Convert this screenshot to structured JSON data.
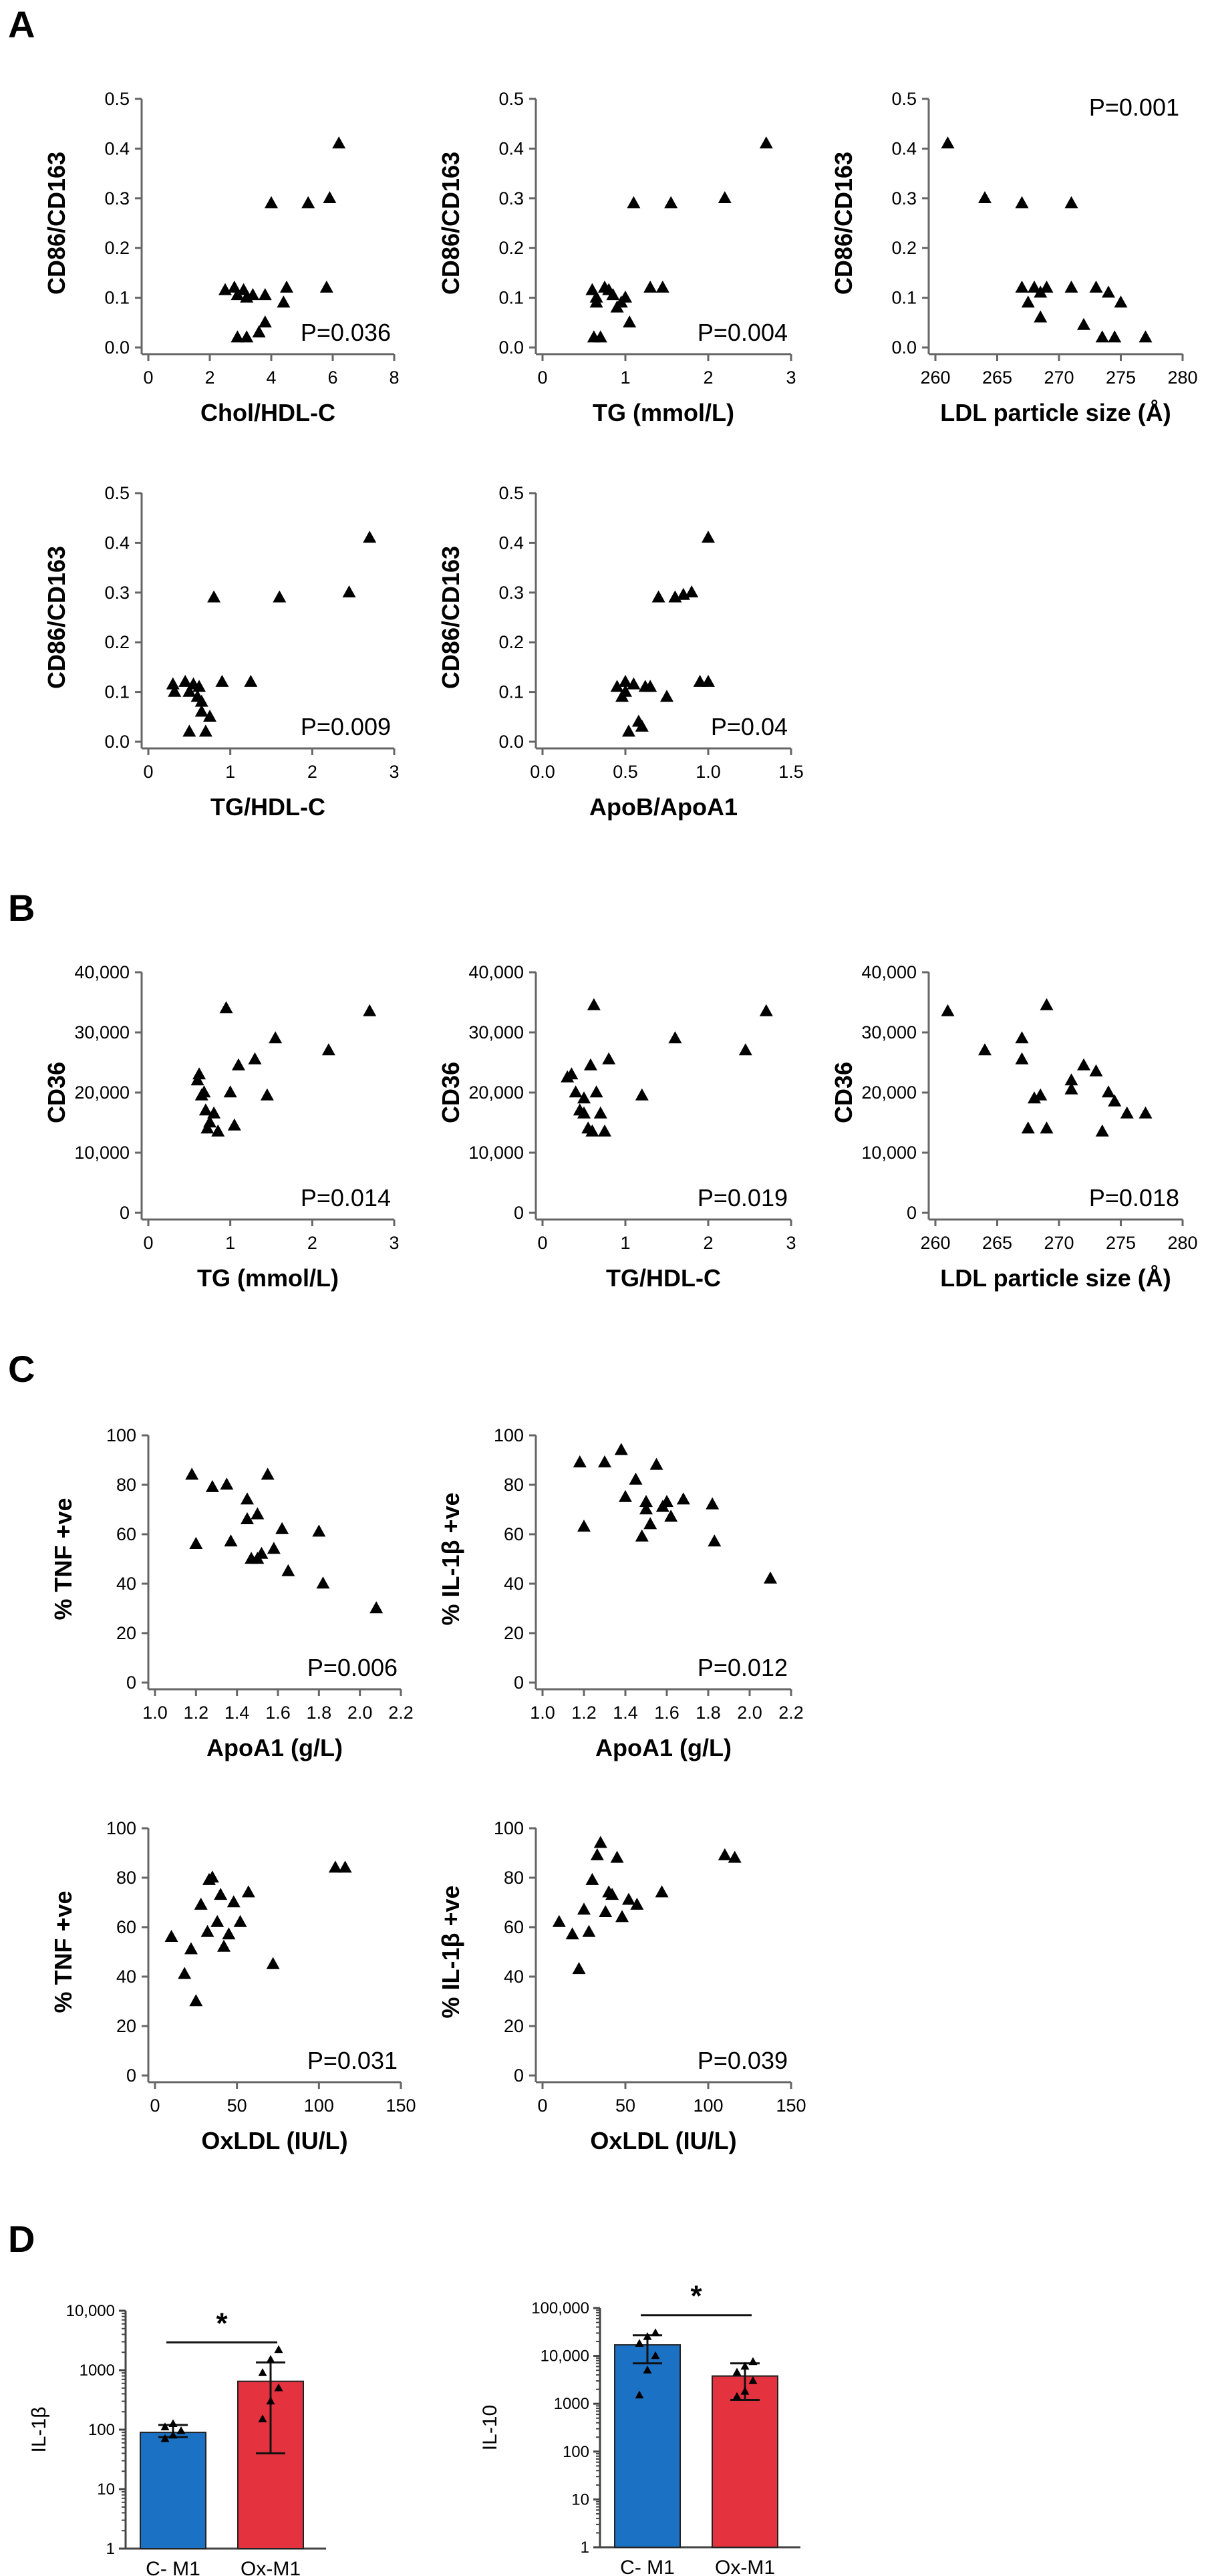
{
  "panels": {
    "A": "A",
    "B": "B",
    "C": "C",
    "D": "D"
  },
  "chart_data": [
    {
      "id": "A1",
      "panel": "A",
      "type": "scatter",
      "xlabel": "Chol/HDL-C",
      "ylabel": "CD86/CD163",
      "pvalue": "P=0.036",
      "pvalue_pos": "bottom-right",
      "xlim": [
        0,
        8
      ],
      "xticks": [
        0,
        2,
        4,
        6,
        8
      ],
      "xtick_labels": [
        "0",
        "2",
        "4",
        "6",
        "8"
      ],
      "ylim": [
        0,
        0.5
      ],
      "yticks": [
        0,
        0.1,
        0.2,
        0.3,
        0.4,
        0.5
      ],
      "ytick_labels": [
        "0.0",
        "0.1",
        "0.2",
        "0.3",
        "0.4",
        "0.5"
      ],
      "x": [
        2.5,
        2.8,
        2.9,
        3.1,
        3.2,
        3.4,
        3.6,
        3.8,
        4.0,
        4.4,
        4.5,
        3.8,
        5.2,
        5.9,
        5.8,
        6.2,
        3.2,
        2.9
      ],
      "y": [
        0.115,
        0.12,
        0.105,
        0.115,
        0.02,
        0.105,
        0.03,
        0.105,
        0.29,
        0.09,
        0.12,
        0.05,
        0.29,
        0.3,
        0.12,
        0.41,
        0.1,
        0.02
      ]
    },
    {
      "id": "A2",
      "panel": "A",
      "type": "scatter",
      "xlabel": "TG (mmol/L)",
      "ylabel": "CD86/CD163",
      "pvalue": "P=0.004",
      "pvalue_pos": "bottom-right",
      "xlim": [
        0,
        3
      ],
      "xticks": [
        0,
        1,
        2,
        3
      ],
      "xtick_labels": [
        "0",
        "1",
        "2",
        "3"
      ],
      "ylim": [
        0,
        0.5
      ],
      "yticks": [
        0,
        0.1,
        0.2,
        0.3,
        0.4,
        0.5
      ],
      "ytick_labels": [
        "0.0",
        "0.1",
        "0.2",
        "0.3",
        "0.4",
        "0.5"
      ],
      "x": [
        0.6,
        0.62,
        0.65,
        0.7,
        0.75,
        0.8,
        0.85,
        0.9,
        1.0,
        1.05,
        1.1,
        1.3,
        1.45,
        1.55,
        2.2,
        2.7,
        0.65,
        0.95
      ],
      "y": [
        0.115,
        0.02,
        0.1,
        0.02,
        0.12,
        0.115,
        0.105,
        0.08,
        0.1,
        0.05,
        0.29,
        0.12,
        0.12,
        0.29,
        0.3,
        0.41,
        0.09,
        0.09
      ]
    },
    {
      "id": "A3",
      "panel": "A",
      "type": "scatter",
      "xlabel": "LDL particle size (Å)",
      "ylabel": "CD86/CD163",
      "pvalue": "P=0.001",
      "pvalue_pos": "top-right",
      "xlim": [
        260,
        280
      ],
      "xticks": [
        260,
        265,
        270,
        275,
        280
      ],
      "xtick_labels": [
        "260",
        "265",
        "270",
        "275",
        "280"
      ],
      "ylim": [
        0,
        0.5
      ],
      "yticks": [
        0,
        0.1,
        0.2,
        0.3,
        0.4,
        0.5
      ],
      "ytick_labels": [
        "0.0",
        "0.1",
        "0.2",
        "0.3",
        "0.4",
        "0.5"
      ],
      "x": [
        261,
        264,
        267,
        267,
        267.5,
        268,
        268.5,
        269,
        271,
        271,
        272,
        273,
        273.5,
        274,
        274.5,
        275,
        277,
        268.5
      ],
      "y": [
        0.41,
        0.3,
        0.29,
        0.12,
        0.09,
        0.12,
        0.06,
        0.12,
        0.29,
        0.12,
        0.045,
        0.12,
        0.02,
        0.11,
        0.02,
        0.09,
        0.02,
        0.11
      ]
    },
    {
      "id": "A4",
      "panel": "A",
      "type": "scatter",
      "xlabel": "TG/HDL-C",
      "ylabel": "CD86/CD163",
      "pvalue": "P=0.009",
      "pvalue_pos": "bottom-right",
      "xlim": [
        0,
        3
      ],
      "xticks": [
        0,
        1,
        2,
        3
      ],
      "xtick_labels": [
        "0",
        "1",
        "2",
        "3"
      ],
      "ylim": [
        0,
        0.5
      ],
      "yticks": [
        0,
        0.1,
        0.2,
        0.3,
        0.4,
        0.5
      ],
      "ytick_labels": [
        "0.0",
        "0.1",
        "0.2",
        "0.3",
        "0.4",
        "0.5"
      ],
      "x": [
        0.3,
        0.32,
        0.45,
        0.5,
        0.55,
        0.6,
        0.62,
        0.65,
        0.7,
        0.75,
        0.8,
        0.9,
        1.25,
        1.6,
        2.45,
        2.7,
        0.5,
        0.65
      ],
      "y": [
        0.115,
        0.1,
        0.12,
        0.02,
        0.115,
        0.09,
        0.11,
        0.06,
        0.02,
        0.05,
        0.29,
        0.12,
        0.12,
        0.29,
        0.3,
        0.41,
        0.1,
        0.08
      ]
    },
    {
      "id": "A5",
      "panel": "A",
      "type": "scatter",
      "xlabel": "ApoB/ApoA1",
      "ylabel": "CD86/CD163",
      "pvalue": "P=0.04",
      "pvalue_pos": "bottom-right",
      "xlim": [
        0,
        1.5
      ],
      "xticks": [
        0,
        0.5,
        1.0,
        1.5
      ],
      "xtick_labels": [
        "0.0",
        "0.5",
        "1.0",
        "1.5"
      ],
      "ylim": [
        0,
        0.5
      ],
      "yticks": [
        0,
        0.1,
        0.2,
        0.3,
        0.4,
        0.5
      ],
      "ytick_labels": [
        "0.0",
        "0.1",
        "0.2",
        "0.3",
        "0.4",
        "0.5"
      ],
      "x": [
        0.45,
        0.48,
        0.5,
        0.52,
        0.55,
        0.58,
        0.6,
        0.65,
        0.7,
        0.75,
        0.8,
        0.85,
        0.9,
        0.95,
        1.0,
        1.0,
        0.5,
        0.62
      ],
      "y": [
        0.11,
        0.09,
        0.12,
        0.02,
        0.115,
        0.04,
        0.03,
        0.11,
        0.29,
        0.09,
        0.29,
        0.295,
        0.3,
        0.12,
        0.41,
        0.12,
        0.1,
        0.11
      ]
    },
    {
      "id": "B1",
      "panel": "B",
      "type": "scatter",
      "xlabel": "TG (mmol/L)",
      "ylabel": "CD36",
      "pvalue": "P=0.014",
      "pvalue_pos": "bottom-right",
      "xlim": [
        0,
        3
      ],
      "xticks": [
        0,
        1,
        2,
        3
      ],
      "xtick_labels": [
        "0",
        "1",
        "2",
        "3"
      ],
      "ylim": [
        0,
        40000
      ],
      "yticks": [
        0,
        10000,
        20000,
        30000,
        40000
      ],
      "ytick_labels": [
        "0",
        "10,000",
        "20,000",
        "30,000",
        "40,000"
      ],
      "x": [
        0.6,
        0.62,
        0.65,
        0.7,
        0.72,
        0.75,
        0.8,
        0.85,
        0.95,
        1.0,
        1.05,
        1.1,
        1.3,
        1.45,
        1.55,
        2.2,
        2.7,
        0.68
      ],
      "y": [
        22000,
        23000,
        19500,
        17000,
        14000,
        15000,
        16500,
        13500,
        34000,
        20000,
        14500,
        24500,
        25500,
        19500,
        29000,
        27000,
        33500,
        20000
      ]
    },
    {
      "id": "B2",
      "panel": "B",
      "type": "scatter",
      "xlabel": "TG/HDL-C",
      "ylabel": "CD36",
      "pvalue": "P=0.019",
      "pvalue_pos": "bottom-right",
      "xlim": [
        0,
        3
      ],
      "xticks": [
        0,
        1,
        2,
        3
      ],
      "xtick_labels": [
        "0",
        "1",
        "2",
        "3"
      ],
      "ylim": [
        0,
        40000
      ],
      "yticks": [
        0,
        10000,
        20000,
        30000,
        40000
      ],
      "ytick_labels": [
        "0",
        "10,000",
        "20,000",
        "30,000",
        "40,000"
      ],
      "x": [
        0.3,
        0.35,
        0.4,
        0.45,
        0.5,
        0.55,
        0.6,
        0.62,
        0.65,
        0.7,
        0.75,
        0.8,
        1.2,
        1.6,
        2.45,
        2.7,
        0.5,
        0.58
      ],
      "y": [
        22500,
        23000,
        20000,
        17000,
        16500,
        14000,
        13500,
        34500,
        20000,
        16500,
        13500,
        25500,
        19500,
        29000,
        27000,
        33500,
        19000,
        24500
      ]
    },
    {
      "id": "B3",
      "panel": "B",
      "type": "scatter",
      "xlabel": "LDL particle size (Å)",
      "ylabel": "CD36",
      "pvalue": "P=0.018",
      "pvalue_pos": "bottom-right",
      "xlim": [
        260,
        280
      ],
      "xticks": [
        260,
        265,
        270,
        275,
        280
      ],
      "xtick_labels": [
        "260",
        "265",
        "270",
        "275",
        "280"
      ],
      "ylim": [
        0,
        40000
      ],
      "yticks": [
        0,
        10000,
        20000,
        30000,
        40000
      ],
      "ytick_labels": [
        "0",
        "10,000",
        "20,000",
        "30,000",
        "40,000"
      ],
      "x": [
        261,
        264,
        267,
        267,
        267.5,
        268.5,
        269,
        269,
        271,
        271,
        272,
        273,
        273.5,
        274,
        274.5,
        275.5,
        277,
        268
      ],
      "y": [
        33500,
        27000,
        29000,
        25500,
        14000,
        19500,
        34500,
        14000,
        22000,
        20500,
        24500,
        23500,
        13500,
        20000,
        18500,
        16500,
        16500,
        19000
      ]
    },
    {
      "id": "C1",
      "panel": "C",
      "type": "scatter",
      "xlabel": "ApoA1 (g/L)",
      "ylabel": "% TNF +ve",
      "pvalue": "P=0.006",
      "pvalue_pos": "bottom-right",
      "xlim": [
        1.0,
        2.2
      ],
      "xticks": [
        1.0,
        1.2,
        1.4,
        1.6,
        1.8,
        2.0,
        2.2
      ],
      "xtick_labels": [
        "1.0",
        "1.2",
        "1.4",
        "1.6",
        "1.8",
        "2.0",
        "2.2"
      ],
      "ylim": [
        0,
        100
      ],
      "yticks": [
        0,
        20,
        40,
        60,
        80,
        100
      ],
      "ytick_labels": [
        "0",
        "20",
        "40",
        "60",
        "80",
        "100"
      ],
      "x": [
        1.18,
        1.2,
        1.28,
        1.35,
        1.37,
        1.45,
        1.47,
        1.5,
        1.52,
        1.55,
        1.58,
        1.62,
        1.65,
        1.8,
        1.82,
        2.08,
        1.45,
        1.5
      ],
      "y": [
        84,
        56,
        79,
        80,
        57,
        74,
        50,
        68,
        52,
        84,
        54,
        62,
        45,
        61,
        40,
        30,
        66,
        50
      ]
    },
    {
      "id": "C2",
      "panel": "C",
      "type": "scatter",
      "xlabel": "ApoA1 (g/L)",
      "ylabel": "% IL-1β +ve",
      "pvalue": "P=0.012",
      "pvalue_pos": "bottom-right",
      "xlim": [
        1.0,
        2.2
      ],
      "xticks": [
        1.0,
        1.2,
        1.4,
        1.6,
        1.8,
        2.0,
        2.2
      ],
      "xtick_labels": [
        "1.0",
        "1.2",
        "1.4",
        "1.6",
        "1.8",
        "2.0",
        "2.2"
      ],
      "ylim": [
        0,
        100
      ],
      "yticks": [
        0,
        20,
        40,
        60,
        80,
        100
      ],
      "ytick_labels": [
        "0",
        "20",
        "40",
        "60",
        "80",
        "100"
      ],
      "x": [
        1.18,
        1.2,
        1.3,
        1.38,
        1.4,
        1.45,
        1.48,
        1.5,
        1.52,
        1.55,
        1.58,
        1.62,
        1.68,
        1.82,
        1.83,
        2.1,
        1.5,
        1.6
      ],
      "y": [
        89,
        63,
        89,
        94,
        75,
        82,
        59,
        73,
        64,
        88,
        71,
        67,
        74,
        72,
        57,
        42,
        70,
        73
      ]
    },
    {
      "id": "C3",
      "panel": "C",
      "type": "scatter",
      "xlabel": "OxLDL (IU/L)",
      "ylabel": "% TNF +ve",
      "pvalue": "P=0.031",
      "pvalue_pos": "bottom-right",
      "xlim": [
        0,
        150
      ],
      "xticks": [
        0,
        50,
        100,
        150
      ],
      "xtick_labels": [
        "0",
        "50",
        "100",
        "150"
      ],
      "ylim": [
        0,
        100
      ],
      "yticks": [
        0,
        20,
        40,
        60,
        80,
        100
      ],
      "ytick_labels": [
        "0",
        "20",
        "40",
        "60",
        "80",
        "100"
      ],
      "x": [
        10,
        18,
        22,
        25,
        28,
        32,
        33,
        35,
        38,
        40,
        42,
        45,
        48,
        52,
        57,
        72,
        110,
        116
      ],
      "y": [
        56,
        41,
        51,
        30,
        69,
        58,
        79,
        80,
        62,
        73,
        52,
        57,
        70,
        62,
        74,
        45,
        84,
        84
      ]
    },
    {
      "id": "C4",
      "panel": "C",
      "type": "scatter",
      "xlabel": "OxLDL (IU/L)",
      "ylabel": "% IL-1β +ve",
      "pvalue": "P=0.039",
      "pvalue_pos": "bottom-right",
      "xlim": [
        0,
        150
      ],
      "xticks": [
        0,
        50,
        100,
        150
      ],
      "xtick_labels": [
        "0",
        "50",
        "100",
        "150"
      ],
      "ylim": [
        0,
        100
      ],
      "yticks": [
        0,
        20,
        40,
        60,
        80,
        100
      ],
      "ytick_labels": [
        "0",
        "20",
        "40",
        "60",
        "80",
        "100"
      ],
      "x": [
        10,
        18,
        22,
        25,
        28,
        33,
        35,
        38,
        40,
        42,
        45,
        48,
        52,
        57,
        72,
        110,
        116,
        30
      ],
      "y": [
        62,
        57,
        43,
        67,
        58,
        89,
        94,
        66,
        74,
        73,
        88,
        64,
        71,
        69,
        74,
        89,
        88,
        79
      ]
    },
    {
      "id": "D1",
      "panel": "D",
      "type": "bar",
      "yscale": "log",
      "ylabel": "IL-1β",
      "significance": "*",
      "categories": [
        "C- M1",
        "Ox-M1"
      ],
      "values": [
        90,
        650
      ],
      "error_low": [
        75,
        40
      ],
      "error_high": [
        120,
        1350
      ],
      "colors": [
        "#1b72c4",
        "#e5323f"
      ],
      "points": [
        [
          70,
          80,
          95,
          110,
          125
        ],
        [
          150,
          300,
          500,
          900,
          1500,
          2200
        ]
      ],
      "ylim": [
        1,
        10000
      ],
      "yticks": [
        1,
        10,
        100,
        1000,
        10000
      ],
      "ytick_labels": [
        "1",
        "10",
        "100",
        "1000",
        "10,000"
      ]
    },
    {
      "id": "D2",
      "panel": "D",
      "type": "bar",
      "yscale": "log",
      "ylabel": "IL-10",
      "significance": "*",
      "categories": [
        "C- M1",
        "Ox-M1"
      ],
      "values": [
        17000,
        3800
      ],
      "error_low": [
        7000,
        1200
      ],
      "error_high": [
        27000,
        7000
      ],
      "colors": [
        "#1b72c4",
        "#e5323f"
      ],
      "points": [
        [
          1500,
          5000,
          10000,
          18000,
          25000,
          30000
        ],
        [
          1400,
          1800,
          3000,
          4500,
          6000,
          7500
        ]
      ],
      "ylim": [
        1,
        100000
      ],
      "yticks": [
        1,
        10,
        100,
        1000,
        10000,
        100000
      ],
      "ytick_labels": [
        "1",
        "10",
        "100",
        "1000",
        "10,000",
        "100,000"
      ]
    }
  ]
}
